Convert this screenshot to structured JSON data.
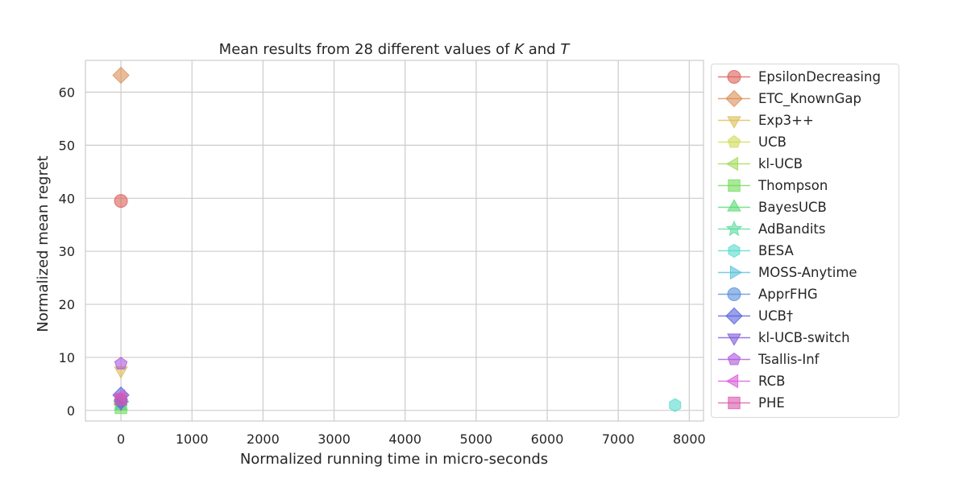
{
  "chart_data": {
    "type": "scatter",
    "title_prefix": "Mean results from 28 different values of ",
    "title_k": "K",
    "title_and": " and ",
    "title_t": "T",
    "xlabel": "Normalized running time in micro-seconds",
    "ylabel": "Normalized mean regret",
    "xlim": [
      -500,
      8200
    ],
    "ylim": [
      -2,
      66
    ],
    "xticks": [
      0,
      1000,
      2000,
      3000,
      4000,
      5000,
      6000,
      7000,
      8000
    ],
    "yticks": [
      0,
      10,
      20,
      30,
      40,
      50,
      60
    ],
    "grid": true,
    "legend_position": "right",
    "series": [
      {
        "name": "EpsilonDecreasing",
        "color": "#db5f57",
        "marker": "circle",
        "x": 0,
        "y": 39.5
      },
      {
        "name": "ETC_KnownGap",
        "color": "#db8e57",
        "marker": "diamond",
        "x": 0,
        "y": 63.2
      },
      {
        "name": "Exp3++",
        "color": "#dbbd57",
        "marker": "triangle-down",
        "x": 0,
        "y": 7.5
      },
      {
        "name": "UCB",
        "color": "#cedb57",
        "marker": "pentagon",
        "x": 0,
        "y": 1.5
      },
      {
        "name": "kl-UCB",
        "color": "#a0db57",
        "marker": "triangle-left",
        "x": 0,
        "y": 1.2
      },
      {
        "name": "Thompson",
        "color": "#71db57",
        "marker": "square",
        "x": 0,
        "y": 0.5
      },
      {
        "name": "BayesUCB",
        "color": "#57db6f",
        "marker": "triangle-up",
        "x": 0,
        "y": 0.8
      },
      {
        "name": "AdBandits",
        "color": "#57db9e",
        "marker": "star",
        "x": 0,
        "y": 1.3
      },
      {
        "name": "BESA",
        "color": "#57dbcc",
        "marker": "hexagon",
        "x": 7800,
        "y": 1.0
      },
      {
        "name": "MOSS-Anytime",
        "color": "#57bfdb",
        "marker": "triangle-right",
        "x": 0,
        "y": 1.6
      },
      {
        "name": "ApprFHG",
        "color": "#5790db",
        "marker": "circle",
        "x": 0,
        "y": 1.8
      },
      {
        "name": "UCB†",
        "color": "#5761db",
        "marker": "diamond",
        "x": 0,
        "y": 2.9
      },
      {
        "name": "kl-UCB-switch",
        "color": "#7c57db",
        "marker": "triangle-down",
        "x": 0,
        "y": 1.4
      },
      {
        "name": "Tsallis-Inf",
        "color": "#ab57db",
        "marker": "pentagon",
        "x": 0,
        "y": 8.8
      },
      {
        "name": "RCB",
        "color": "#db57d9",
        "marker": "triangle-left",
        "x": 0,
        "y": 2.7
      },
      {
        "name": "PHE",
        "color": "#db57aa",
        "marker": "square",
        "x": 0,
        "y": 2.1
      }
    ]
  }
}
